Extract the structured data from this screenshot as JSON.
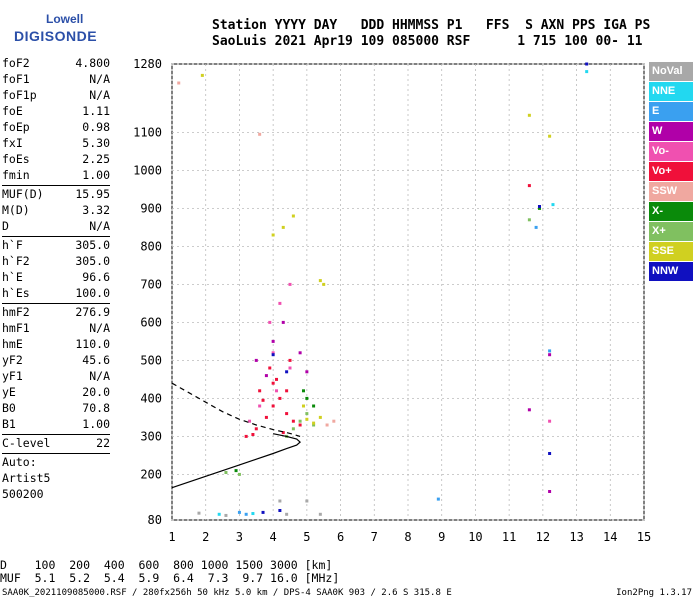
{
  "logo": {
    "line1": "Lowell",
    "line2": "DIGISONDE"
  },
  "header": {
    "line1": "Station YYYY DAY   DDD HHMMSS P1   FFS  S AXN PPS IGA PS",
    "line2": "SaoLuis 2021 Apr19 109 085000 RSF      1 715 100 00- 11"
  },
  "params": {
    "group1": [
      {
        "name": "foF2",
        "value": "4.800"
      },
      {
        "name": "foF1",
        "value": "N/A"
      },
      {
        "name": "foF1p",
        "value": "N/A"
      },
      {
        "name": "foE",
        "value": "1.11"
      },
      {
        "name": "foEp",
        "value": "0.98"
      },
      {
        "name": "fxI",
        "value": "5.30"
      },
      {
        "name": "foEs",
        "value": "2.25"
      },
      {
        "name": "fmin",
        "value": "1.00"
      }
    ],
    "group2": [
      {
        "name": "MUF(D)",
        "value": "15.95"
      },
      {
        "name": "M(D)",
        "value": "3.32"
      },
      {
        "name": "D",
        "value": "N/A"
      }
    ],
    "group3": [
      {
        "name": "h`F",
        "value": "305.0"
      },
      {
        "name": "h`F2",
        "value": "305.0"
      },
      {
        "name": "h`E",
        "value": "96.6"
      },
      {
        "name": "h`Es",
        "value": "100.0"
      }
    ],
    "group4": [
      {
        "name": "hmF2",
        "value": "276.9"
      },
      {
        "name": "hmF1",
        "value": "N/A"
      },
      {
        "name": "hmE",
        "value": "110.0"
      },
      {
        "name": "yF2",
        "value": "45.6"
      },
      {
        "name": "yF1",
        "value": "N/A"
      },
      {
        "name": "yE",
        "value": "20.0"
      },
      {
        "name": "B0",
        "value": "70.8"
      },
      {
        "name": "B1",
        "value": "1.00"
      }
    ],
    "clevel": {
      "name": "C-level",
      "value": "22"
    },
    "auto": [
      "Auto:",
      "Artist5",
      "500200"
    ]
  },
  "legend": [
    {
      "label": "NoVal",
      "color": "#a8a8a8"
    },
    {
      "label": "NNE",
      "color": "#22d8f0"
    },
    {
      "label": "E",
      "color": "#3aa0f0"
    },
    {
      "label": "W",
      "color": "#b000a8"
    },
    {
      "label": "Vo-",
      "color": "#f050b0"
    },
    {
      "label": "Vo+",
      "color": "#f0103a"
    },
    {
      "label": "SSW",
      "color": "#f0a8a0"
    },
    {
      "label": "X-",
      "color": "#0a8a0a"
    },
    {
      "label": "X+",
      "color": "#80c060"
    },
    {
      "label": "SSE",
      "color": "#d0d020"
    },
    {
      "label": "NNW",
      "color": "#1010c0"
    }
  ],
  "footer": {
    "line1": "D    100  200  400  600  800 1000 1500 3000 [km]",
    "line2": "MUF  5.1  5.2  5.4  5.9  6.4  7.3  9.7 16.0 [MHz]",
    "line3": "SAA0K_2021109085000.RSF / 280fx256h 50 kHz 5.0 km / DPS-4 SAA0K 903 / 2.6 S 315.8 E",
    "version": "Ion2Png 1.3.17"
  },
  "chart_data": {
    "type": "scatter",
    "xlim": [
      1,
      15
    ],
    "ylim": [
      80,
      1280
    ],
    "x_ticks": [
      "1",
      "2",
      "3",
      "4",
      "5",
      "6",
      "7",
      "8",
      "9",
      "10",
      "11",
      "12",
      "13",
      "14",
      "15"
    ],
    "y_ticks": [
      "80",
      "200",
      "300",
      "400",
      "500",
      "600",
      "700",
      "800",
      "900",
      "1000",
      "1100",
      "1280"
    ],
    "grid": true,
    "series": [
      {
        "color": "#f0103a",
        "points": [
          [
            3.2,
            300
          ],
          [
            3.5,
            320
          ],
          [
            3.8,
            350
          ],
          [
            4.0,
            380
          ],
          [
            4.2,
            400
          ],
          [
            4.4,
            360
          ],
          [
            4.6,
            340
          ],
          [
            3.6,
            420
          ],
          [
            4.1,
            450
          ],
          [
            4.5,
            500
          ],
          [
            3.9,
            480
          ],
          [
            4.3,
            310
          ],
          [
            3.4,
            305
          ],
          [
            4.8,
            330
          ],
          [
            3.7,
            395
          ],
          [
            4.0,
            440
          ],
          [
            4.4,
            420
          ],
          [
            11.6,
            960
          ]
        ]
      },
      {
        "color": "#b000a8",
        "points": [
          [
            3.5,
            500
          ],
          [
            4.0,
            550
          ],
          [
            4.3,
            600
          ],
          [
            4.8,
            520
          ],
          [
            5.0,
            470
          ],
          [
            3.8,
            460
          ],
          [
            12.2,
            515
          ],
          [
            11.6,
            370
          ],
          [
            12.2,
            155
          ]
        ]
      },
      {
        "color": "#f050b0",
        "points": [
          [
            3.3,
            340
          ],
          [
            3.6,
            380
          ],
          [
            4.1,
            420
          ],
          [
            4.5,
            480
          ],
          [
            4.0,
            520
          ],
          [
            3.9,
            600
          ],
          [
            4.2,
            650
          ],
          [
            4.5,
            700
          ],
          [
            12.2,
            340
          ]
        ]
      },
      {
        "color": "#80c060",
        "points": [
          [
            4.6,
            320
          ],
          [
            4.8,
            340
          ],
          [
            5.0,
            360
          ],
          [
            5.2,
            330
          ],
          [
            4.4,
            300
          ],
          [
            3.0,
            200
          ],
          [
            2.6,
            205
          ],
          [
            11.6,
            870
          ]
        ]
      },
      {
        "color": "#d0d020",
        "points": [
          [
            5.0,
            345
          ],
          [
            5.2,
            335
          ],
          [
            5.4,
            350
          ],
          [
            4.9,
            380
          ],
          [
            4.0,
            830
          ],
          [
            4.3,
            850
          ],
          [
            4.6,
            880
          ],
          [
            5.4,
            710
          ],
          [
            5.5,
            700
          ],
          [
            1.9,
            1250
          ],
          [
            11.6,
            1145
          ],
          [
            12.2,
            1090
          ]
        ]
      },
      {
        "color": "#0a8a0a",
        "points": [
          [
            5.0,
            400
          ],
          [
            4.9,
            420
          ],
          [
            5.2,
            380
          ],
          [
            2.9,
            210
          ],
          [
            11.9,
            900
          ]
        ]
      },
      {
        "color": "#1010c0",
        "points": [
          [
            4.0,
            515
          ],
          [
            4.4,
            470
          ],
          [
            3.7,
            100
          ],
          [
            4.2,
            105
          ],
          [
            12.2,
            255
          ],
          [
            13.3,
            1280
          ],
          [
            11.9,
            905
          ]
        ]
      },
      {
        "color": "#3aa0f0",
        "points": [
          [
            3.2,
            95
          ],
          [
            3.0,
            100
          ],
          [
            8.9,
            135
          ],
          [
            12.2,
            525
          ],
          [
            11.8,
            850
          ]
        ]
      },
      {
        "color": "#22d8f0",
        "points": [
          [
            2.4,
            95
          ],
          [
            3.4,
            97
          ],
          [
            12.3,
            910
          ],
          [
            13.3,
            1260
          ]
        ]
      },
      {
        "color": "#a8a8a8",
        "points": [
          [
            1.8,
            98
          ],
          [
            2.6,
            92
          ],
          [
            4.4,
            95
          ],
          [
            5.4,
            95
          ],
          [
            5.0,
            130
          ],
          [
            4.2,
            130
          ]
        ]
      },
      {
        "color": "#f0a8a0",
        "points": [
          [
            5.6,
            330
          ],
          [
            5.8,
            340
          ],
          [
            1.2,
            1230
          ],
          [
            3.6,
            1095
          ]
        ]
      }
    ],
    "profile_curve": [
      [
        1,
        165
      ],
      [
        2,
        195
      ],
      [
        3,
        225
      ],
      [
        3.5,
        240
      ],
      [
        4,
        255
      ],
      [
        4.4,
        268
      ],
      [
        4.7,
        277
      ],
      [
        4.8,
        285
      ],
      [
        4.7,
        293
      ],
      [
        4.4,
        300
      ],
      [
        4.0,
        307
      ]
    ],
    "extrapolated_curve": [
      [
        1,
        440
      ],
      [
        1.5,
        415
      ],
      [
        2.0,
        390
      ],
      [
        2.5,
        365
      ],
      [
        3.0,
        345
      ],
      [
        3.5,
        330
      ],
      [
        4.0,
        318
      ],
      [
        4.5,
        308
      ],
      [
        4.8,
        300
      ]
    ]
  }
}
